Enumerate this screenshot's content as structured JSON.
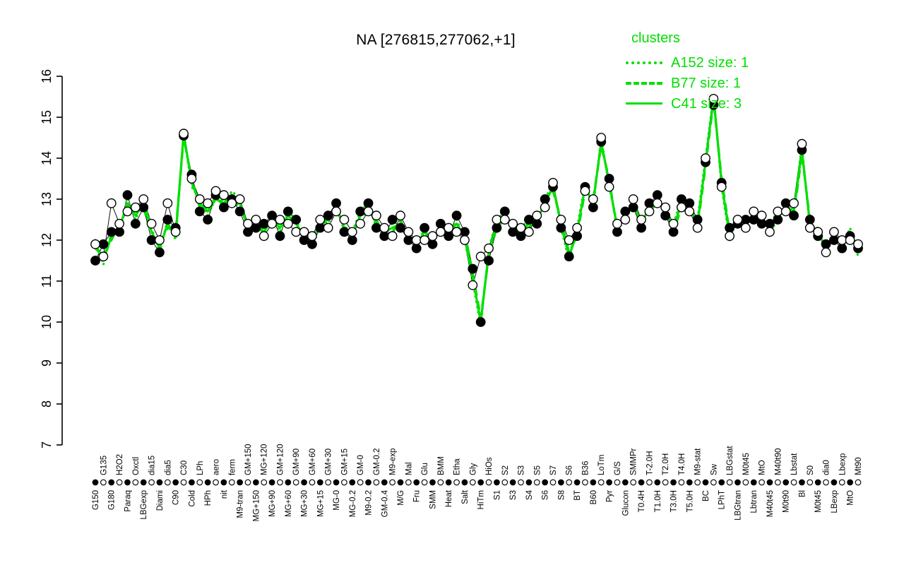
{
  "title": "NA [276815,277062,+1]",
  "legend": {
    "title": "clusters",
    "color": "#00DF00",
    "entries": [
      {
        "label": "A152 size: 1",
        "style": "dotted"
      },
      {
        "label": "B77 size: 1",
        "style": "dashed"
      },
      {
        "label": "C41 size: 3",
        "style": "solid"
      }
    ]
  },
  "chart_data": {
    "type": "line",
    "title": "NA [276815,277062,+1]",
    "xlabel": "",
    "ylabel": "",
    "ylim": [
      7,
      16
    ],
    "yticks": [
      7,
      8,
      9,
      10,
      11,
      12,
      13,
      14,
      15,
      16
    ],
    "grid": false,
    "legend_position": "top-right",
    "x_labels_layout": "staggered-rotated-90",
    "categories": [
      "G150",
      "G135",
      "G180",
      "H2O2",
      "Paraq",
      "Oxctl",
      "LBGexp",
      "dia15",
      "Diami",
      "dia5",
      "C90",
      "C30",
      "Cold",
      "LPh",
      "HPh",
      "aero",
      "nit",
      "ferm",
      "M9-tran",
      "GM+150",
      "MG+150",
      "MG+120",
      "MG+90",
      "GM+120",
      "MG+60",
      "GM+90",
      "MG+30",
      "GM+60",
      "MG+15",
      "GM+30",
      "MG-0",
      "GM+15",
      "MG-0.2",
      "GM-0",
      "M9-0.2",
      "GM-0.2",
      "GM-0.4",
      "M9-exp",
      "M/G",
      "Mal",
      "Fru",
      "Glu",
      "SMM",
      "BMM",
      "Heat",
      "Etha",
      "Salt",
      "Gly",
      "HiTm",
      "HiOs",
      "S1",
      "S2",
      "S3",
      "S3",
      "S4",
      "S5",
      "S6",
      "S7",
      "S8",
      "S6",
      "BT",
      "B36",
      "B60",
      "LoTm",
      "Pyr",
      "G/S",
      "Glucon",
      "SMMPr",
      "T0.4H",
      "T-2.0H",
      "T1.0H",
      "T2.0H",
      "T3.0H",
      "T4.0H",
      "T5.0H",
      "M9-stat",
      "BC",
      "Sw",
      "LPhT",
      "LBGstat",
      "LBGtran",
      "M0t45",
      "Lbtran",
      "MtO",
      "M40t45",
      "M40t90",
      "M0t90",
      "Lbstat",
      "Bl",
      "S0",
      "M0t45",
      "dia0",
      "LBexp",
      "Lbexp",
      "MtO",
      "Mt90"
    ],
    "series": [
      {
        "name": "A152 size: 1",
        "cluster": "A152",
        "size": 1,
        "style": "dotted",
        "color": "#00DF00",
        "values": [
          12.0,
          11.4,
          12.2,
          12.2,
          13.0,
          12.5,
          13.0,
          12.3,
          11.7,
          12.5,
          12.0,
          14.6,
          13.3,
          13.0,
          12.6,
          13.1,
          12.8,
          13.2,
          13.0,
          12.2,
          12.5,
          12.1,
          12.6,
          12.2,
          12.7,
          12.5,
          12.0,
          11.9,
          12.5,
          12.4,
          12.9,
          12.2,
          12.2,
          12.7,
          12.9,
          12.3,
          12.3,
          12.4,
          12.3,
          12.2,
          11.8,
          12.3,
          11.9,
          12.4,
          12.1,
          12.5,
          12.0,
          11.0,
          9.9,
          11.8,
          12.5,
          12.7,
          12.2,
          12.3,
          12.5,
          12.4,
          13.0,
          13.4,
          12.3,
          11.5,
          12.3,
          13.4,
          12.8,
          14.5,
          13.3,
          12.4,
          12.5,
          13.0,
          12.3,
          12.9,
          13.1,
          12.6,
          12.4,
          13.0,
          12.7,
          12.5,
          14.0,
          15.55,
          13.3,
          12.0,
          12.6,
          12.3,
          12.7,
          12.4,
          12.4,
          12.7,
          12.7,
          12.8,
          14.3,
          12.3,
          12.3,
          11.7,
          12.2,
          11.8,
          12.3,
          11.6
        ]
      },
      {
        "name": "B77 size: 1",
        "cluster": "B77",
        "size": 1,
        "style": "dashed",
        "color": "#00DF00",
        "values": [
          11.8,
          11.6,
          12.0,
          12.4,
          12.8,
          12.7,
          12.8,
          12.1,
          11.9,
          12.3,
          12.2,
          14.5,
          13.5,
          12.8,
          12.8,
          12.9,
          13.0,
          13.0,
          12.8,
          12.4,
          12.3,
          12.3,
          12.4,
          12.4,
          12.5,
          12.3,
          12.2,
          12.1,
          12.3,
          12.6,
          12.7,
          12.4,
          12.0,
          12.5,
          12.7,
          12.5,
          12.1,
          12.2,
          12.5,
          12.0,
          12.0,
          12.1,
          12.1,
          12.2,
          12.3,
          12.3,
          12.2,
          11.2,
          10.1,
          11.6,
          12.3,
          12.5,
          12.4,
          12.1,
          12.3,
          12.6,
          12.8,
          13.2,
          12.5,
          11.7,
          12.1,
          13.2,
          13.0,
          14.3,
          13.5,
          12.2,
          12.7,
          12.8,
          12.5,
          12.7,
          12.9,
          12.8,
          12.2,
          12.8,
          12.9,
          12.3,
          13.8,
          15.4,
          13.5,
          12.2,
          12.4,
          12.5,
          12.5,
          12.6,
          12.2,
          12.5,
          12.9,
          12.6,
          14.1,
          12.5,
          12.1,
          11.9,
          12.0,
          12.0,
          12.1,
          11.8
        ]
      },
      {
        "name": "C41 size: 3",
        "cluster": "C41",
        "size": 3,
        "style": "solid",
        "color": "#00DF00",
        "values": [
          11.9,
          11.5,
          12.1,
          12.3,
          12.9,
          12.6,
          12.9,
          12.2,
          11.8,
          12.4,
          12.1,
          14.6,
          13.4,
          12.9,
          12.7,
          13.0,
          12.9,
          13.1,
          12.9,
          12.3,
          12.4,
          12.2,
          12.5,
          12.3,
          12.6,
          12.4,
          12.1,
          12.0,
          12.4,
          12.5,
          12.8,
          12.3,
          12.1,
          12.6,
          12.8,
          12.4,
          12.2,
          12.3,
          12.4,
          12.1,
          11.9,
          12.2,
          12.0,
          12.3,
          12.2,
          12.4,
          12.1,
          11.1,
          10.0,
          11.7,
          12.4,
          12.6,
          12.3,
          12.2,
          12.4,
          12.5,
          12.9,
          13.3,
          12.4,
          11.6,
          12.2,
          13.3,
          12.9,
          14.4,
          13.4,
          12.3,
          12.6,
          12.9,
          12.4,
          12.8,
          13.0,
          12.7,
          12.3,
          12.9,
          12.8,
          12.4,
          13.9,
          15.5,
          13.4,
          12.1,
          12.5,
          12.4,
          12.6,
          12.5,
          12.3,
          12.6,
          12.8,
          12.7,
          14.2,
          12.4,
          12.2,
          11.8,
          12.1,
          11.9,
          12.2,
          11.7
        ]
      }
    ],
    "points": [
      {
        "name": "filled",
        "marker": "filled-circle",
        "fill": "#000000",
        "stroke": "#000000",
        "values": [
          11.5,
          11.9,
          12.2,
          12.2,
          13.1,
          12.4,
          12.8,
          12.0,
          11.7,
          12.5,
          12.3,
          14.55,
          13.6,
          12.7,
          12.5,
          13.1,
          12.8,
          13.0,
          12.7,
          12.2,
          12.3,
          12.4,
          12.6,
          12.1,
          12.7,
          12.5,
          12.0,
          11.9,
          12.3,
          12.6,
          12.9,
          12.2,
          12.0,
          12.7,
          12.9,
          12.3,
          12.1,
          12.5,
          12.3,
          12.0,
          11.8,
          12.3,
          11.9,
          12.4,
          12.1,
          12.6,
          12.2,
          11.3,
          10.0,
          11.5,
          12.3,
          12.7,
          12.2,
          12.1,
          12.5,
          12.4,
          13.0,
          13.3,
          12.3,
          11.6,
          12.1,
          13.3,
          12.8,
          14.4,
          13.5,
          12.2,
          12.7,
          12.8,
          12.3,
          12.9,
          13.1,
          12.6,
          12.2,
          13.0,
          12.9,
          12.5,
          13.9,
          15.3,
          13.4,
          12.3,
          12.4,
          12.5,
          12.5,
          12.4,
          12.4,
          12.5,
          12.9,
          12.6,
          14.2,
          12.5,
          12.1,
          11.9,
          12.0,
          11.8,
          12.1,
          11.8
        ]
      },
      {
        "name": "open",
        "marker": "open-circle",
        "fill": "#ffffff",
        "stroke": "#000000",
        "values": [
          11.9,
          11.6,
          12.9,
          12.4,
          12.7,
          12.8,
          13.0,
          12.4,
          12.0,
          12.9,
          12.2,
          14.6,
          13.5,
          13.0,
          12.9,
          13.2,
          13.1,
          12.9,
          13.0,
          12.4,
          12.5,
          12.1,
          12.4,
          12.5,
          12.4,
          12.2,
          12.2,
          12.1,
          12.5,
          12.3,
          12.7,
          12.5,
          12.2,
          12.4,
          12.7,
          12.6,
          12.3,
          12.1,
          12.6,
          12.2,
          12.0,
          12.0,
          12.1,
          12.2,
          12.3,
          12.2,
          12.0,
          10.9,
          11.6,
          11.8,
          12.5,
          12.5,
          12.4,
          12.3,
          12.2,
          12.6,
          12.8,
          13.4,
          12.5,
          12.0,
          12.3,
          13.2,
          13.0,
          14.5,
          13.3,
          12.4,
          12.5,
          13.0,
          12.5,
          12.7,
          12.9,
          12.8,
          12.4,
          12.8,
          12.7,
          12.3,
          14.0,
          15.45,
          13.3,
          12.1,
          12.5,
          12.3,
          12.7,
          12.6,
          12.2,
          12.7,
          12.7,
          12.9,
          14.35,
          12.3,
          12.2,
          11.7,
          12.2,
          12.0,
          12.0,
          11.9
        ]
      }
    ]
  }
}
